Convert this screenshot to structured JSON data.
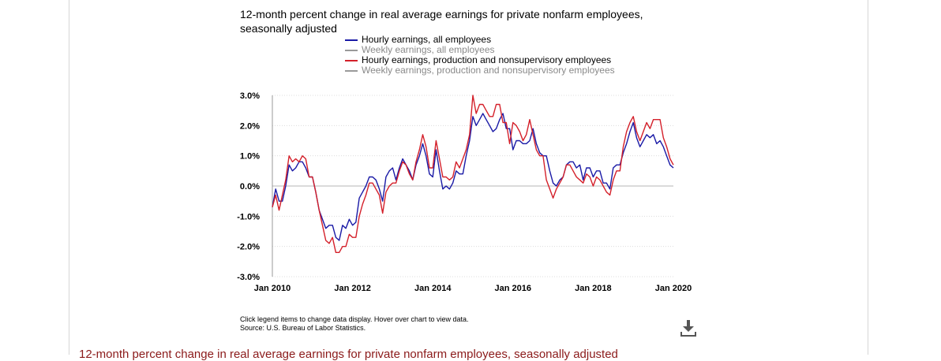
{
  "colors": {
    "hourly_all": "#1a1aa6",
    "weekly_all": "#9a9a9a",
    "hourly_prod": "#d4202a",
    "weekly_prod": "#9a9a9a",
    "section_heading": "#8b1a1a"
  },
  "icons": {
    "download": "download-icon"
  },
  "footnote": {
    "line1": "Click legend items to change data display. Hover over chart to view data.",
    "line2": "Source: U.S. Bureau of Labor Statistics."
  },
  "section_heading": "12-month percent change in real average earnings for private nonfarm employees, seasonally adjusted",
  "chart_data": {
    "type": "line",
    "title": "12-month percent change in real average earnings for private nonfarm employees, seasonally adjusted",
    "xlabel": "",
    "ylabel": "",
    "ylim": [
      -3.0,
      3.0
    ],
    "yticks": [
      "3.0%",
      "2.0%",
      "1.0%",
      "0.0%",
      "-1.0%",
      "-2.0%",
      "-3.0%"
    ],
    "xticks": [
      "Jan 2010",
      "Jan 2012",
      "Jan 2014",
      "Jan 2016",
      "Jan 2018",
      "Jan 2020"
    ],
    "x_start": "2010-01",
    "x_end": "2020-01",
    "grid": true,
    "legend_position": "top",
    "series": [
      {
        "name": "Hourly earnings, all employees",
        "color": "#1a1aa6",
        "active": true,
        "points": [
          [
            "2010-01",
            -0.7
          ],
          [
            "2010-02",
            -0.1
          ],
          [
            "2010-03",
            -0.5
          ],
          [
            "2010-04",
            -0.5
          ],
          [
            "2010-05",
            0.0
          ],
          [
            "2010-06",
            0.7
          ],
          [
            "2010-07",
            0.5
          ],
          [
            "2010-08",
            0.6
          ],
          [
            "2010-09",
            0.8
          ],
          [
            "2010-10",
            0.8
          ],
          [
            "2010-11",
            0.6
          ],
          [
            "2010-12",
            0.3
          ],
          [
            "2011-01",
            0.3
          ],
          [
            "2011-02",
            -0.2
          ],
          [
            "2011-03",
            -0.8
          ],
          [
            "2011-04",
            -1.1
          ],
          [
            "2011-05",
            -1.4
          ],
          [
            "2011-06",
            -1.3
          ],
          [
            "2011-07",
            -1.3
          ],
          [
            "2011-08",
            -1.7
          ],
          [
            "2011-09",
            -1.8
          ],
          [
            "2011-10",
            -1.3
          ],
          [
            "2011-11",
            -1.4
          ],
          [
            "2011-12",
            -1.1
          ],
          [
            "2012-01",
            -1.3
          ],
          [
            "2012-02",
            -1.2
          ],
          [
            "2012-03",
            -0.4
          ],
          [
            "2012-04",
            -0.2
          ],
          [
            "2012-05",
            0.0
          ],
          [
            "2012-06",
            0.3
          ],
          [
            "2012-07",
            0.3
          ],
          [
            "2012-08",
            0.2
          ],
          [
            "2012-09",
            -0.1
          ],
          [
            "2012-10",
            -0.5
          ],
          [
            "2012-11",
            0.3
          ],
          [
            "2012-12",
            0.5
          ],
          [
            "2013-01",
            0.6
          ],
          [
            "2013-02",
            0.2
          ],
          [
            "2013-03",
            0.6
          ],
          [
            "2013-04",
            0.9
          ],
          [
            "2013-05",
            0.7
          ],
          [
            "2013-06",
            0.5
          ],
          [
            "2013-07",
            0.2
          ],
          [
            "2013-08",
            0.7
          ],
          [
            "2013-09",
            1.0
          ],
          [
            "2013-10",
            1.4
          ],
          [
            "2013-11",
            1.0
          ],
          [
            "2013-12",
            0.4
          ],
          [
            "2014-01",
            0.3
          ],
          [
            "2014-02",
            1.2
          ],
          [
            "2014-03",
            0.5
          ],
          [
            "2014-04",
            -0.1
          ],
          [
            "2014-05",
            0.0
          ],
          [
            "2014-06",
            -0.1
          ],
          [
            "2014-07",
            0.1
          ],
          [
            "2014-08",
            0.5
          ],
          [
            "2014-09",
            0.4
          ],
          [
            "2014-10",
            0.4
          ],
          [
            "2014-11",
            1.0
          ],
          [
            "2014-12",
            1.5
          ],
          [
            "2015-01",
            2.3
          ],
          [
            "2015-02",
            2.0
          ],
          [
            "2015-03",
            2.2
          ],
          [
            "2015-04",
            2.4
          ],
          [
            "2015-05",
            2.2
          ],
          [
            "2015-06",
            2.0
          ],
          [
            "2015-07",
            1.8
          ],
          [
            "2015-08",
            1.9
          ],
          [
            "2015-09",
            2.2
          ],
          [
            "2015-10",
            2.4
          ],
          [
            "2015-11",
            1.9
          ],
          [
            "2015-12",
            1.9
          ],
          [
            "2016-01",
            1.2
          ],
          [
            "2016-02",
            1.5
          ],
          [
            "2016-03",
            1.5
          ],
          [
            "2016-04",
            1.4
          ],
          [
            "2016-05",
            1.4
          ],
          [
            "2016-06",
            1.5
          ],
          [
            "2016-07",
            1.9
          ],
          [
            "2016-08",
            1.4
          ],
          [
            "2016-09",
            1.1
          ],
          [
            "2016-10",
            1.0
          ],
          [
            "2016-11",
            1.0
          ],
          [
            "2016-12",
            0.5
          ],
          [
            "2017-01",
            0.1
          ],
          [
            "2017-02",
            0.0
          ],
          [
            "2017-03",
            0.2
          ],
          [
            "2017-04",
            0.3
          ],
          [
            "2017-05",
            0.7
          ],
          [
            "2017-06",
            0.8
          ],
          [
            "2017-07",
            0.8
          ],
          [
            "2017-08",
            0.6
          ],
          [
            "2017-09",
            0.7
          ],
          [
            "2017-10",
            0.2
          ],
          [
            "2017-11",
            0.6
          ],
          [
            "2017-12",
            0.6
          ],
          [
            "2018-01",
            0.3
          ],
          [
            "2018-02",
            0.5
          ],
          [
            "2018-03",
            0.5
          ],
          [
            "2018-04",
            0.1
          ],
          [
            "2018-05",
            0.1
          ],
          [
            "2018-06",
            -0.1
          ],
          [
            "2018-07",
            0.6
          ],
          [
            "2018-08",
            0.7
          ],
          [
            "2018-09",
            0.7
          ],
          [
            "2018-10",
            1.1
          ],
          [
            "2018-11",
            1.4
          ],
          [
            "2018-12",
            1.8
          ],
          [
            "2019-01",
            2.1
          ],
          [
            "2019-02",
            1.6
          ],
          [
            "2019-03",
            1.3
          ],
          [
            "2019-04",
            1.5
          ],
          [
            "2019-05",
            1.7
          ],
          [
            "2019-06",
            1.6
          ],
          [
            "2019-07",
            1.7
          ],
          [
            "2019-08",
            1.4
          ],
          [
            "2019-09",
            1.5
          ],
          [
            "2019-10",
            1.3
          ],
          [
            "2019-11",
            1.0
          ],
          [
            "2019-12",
            0.7
          ],
          [
            "2020-01",
            0.6
          ]
        ]
      },
      {
        "name": "Weekly earnings, all employees",
        "color": "#9a9a9a",
        "active": false,
        "points": []
      },
      {
        "name": "Hourly earnings, production and nonsupervisory employees",
        "color": "#d4202a",
        "active": true,
        "points": [
          [
            "2010-01",
            -0.7
          ],
          [
            "2010-02",
            -0.3
          ],
          [
            "2010-03",
            -0.8
          ],
          [
            "2010-04",
            -0.3
          ],
          [
            "2010-05",
            0.2
          ],
          [
            "2010-06",
            1.0
          ],
          [
            "2010-07",
            0.8
          ],
          [
            "2010-08",
            0.9
          ],
          [
            "2010-09",
            0.8
          ],
          [
            "2010-10",
            1.0
          ],
          [
            "2010-11",
            0.9
          ],
          [
            "2010-12",
            0.3
          ],
          [
            "2011-01",
            0.3
          ],
          [
            "2011-02",
            -0.2
          ],
          [
            "2011-03",
            -0.8
          ],
          [
            "2011-04",
            -1.3
          ],
          [
            "2011-05",
            -1.8
          ],
          [
            "2011-06",
            -1.9
          ],
          [
            "2011-07",
            -1.7
          ],
          [
            "2011-08",
            -2.2
          ],
          [
            "2011-09",
            -2.2
          ],
          [
            "2011-10",
            -2.0
          ],
          [
            "2011-11",
            -2.0
          ],
          [
            "2011-12",
            -1.6
          ],
          [
            "2012-01",
            -1.7
          ],
          [
            "2012-02",
            -1.7
          ],
          [
            "2012-03",
            -1.0
          ],
          [
            "2012-04",
            -0.6
          ],
          [
            "2012-05",
            -0.3
          ],
          [
            "2012-06",
            0.1
          ],
          [
            "2012-07",
            0.1
          ],
          [
            "2012-08",
            -0.1
          ],
          [
            "2012-09",
            -0.3
          ],
          [
            "2012-10",
            -0.9
          ],
          [
            "2012-11",
            -0.2
          ],
          [
            "2012-12",
            0.0
          ],
          [
            "2013-01",
            0.1
          ],
          [
            "2013-02",
            0.1
          ],
          [
            "2013-03",
            0.5
          ],
          [
            "2013-04",
            0.8
          ],
          [
            "2013-05",
            0.7
          ],
          [
            "2013-06",
            0.4
          ],
          [
            "2013-07",
            0.2
          ],
          [
            "2013-08",
            0.8
          ],
          [
            "2013-09",
            1.2
          ],
          [
            "2013-10",
            1.7
          ],
          [
            "2013-11",
            1.3
          ],
          [
            "2013-12",
            0.6
          ],
          [
            "2014-01",
            0.6
          ],
          [
            "2014-02",
            1.5
          ],
          [
            "2014-03",
            0.9
          ],
          [
            "2014-04",
            0.3
          ],
          [
            "2014-05",
            0.3
          ],
          [
            "2014-06",
            0.2
          ],
          [
            "2014-07",
            0.3
          ],
          [
            "2014-08",
            0.8
          ],
          [
            "2014-09",
            0.6
          ],
          [
            "2014-10",
            0.9
          ],
          [
            "2014-11",
            1.2
          ],
          [
            "2014-12",
            1.7
          ],
          [
            "2015-01",
            3.0
          ],
          [
            "2015-02",
            2.4
          ],
          [
            "2015-03",
            2.7
          ],
          [
            "2015-04",
            2.7
          ],
          [
            "2015-05",
            2.5
          ],
          [
            "2015-06",
            2.3
          ],
          [
            "2015-07",
            2.3
          ],
          [
            "2015-08",
            2.7
          ],
          [
            "2015-09",
            2.7
          ],
          [
            "2015-10",
            2.1
          ],
          [
            "2015-11",
            2.1
          ],
          [
            "2015-12",
            1.4
          ],
          [
            "2016-01",
            2.1
          ],
          [
            "2016-02",
            2.0
          ],
          [
            "2016-03",
            1.8
          ],
          [
            "2016-04",
            1.5
          ],
          [
            "2016-05",
            1.7
          ],
          [
            "2016-06",
            2.2
          ],
          [
            "2016-07",
            1.7
          ],
          [
            "2016-08",
            1.2
          ],
          [
            "2016-09",
            1.0
          ],
          [
            "2016-10",
            1.0
          ],
          [
            "2016-11",
            0.2
          ],
          [
            "2016-12",
            -0.1
          ],
          [
            "2017-01",
            -0.4
          ],
          [
            "2017-02",
            -0.1
          ],
          [
            "2017-03",
            0.1
          ],
          [
            "2017-04",
            0.3
          ],
          [
            "2017-05",
            0.7
          ],
          [
            "2017-06",
            0.7
          ],
          [
            "2017-07",
            0.5
          ],
          [
            "2017-08",
            0.3
          ],
          [
            "2017-09",
            0.2
          ],
          [
            "2017-10",
            0.1
          ],
          [
            "2017-11",
            0.4
          ],
          [
            "2017-12",
            0.3
          ],
          [
            "2018-01",
            0.0
          ],
          [
            "2018-02",
            0.3
          ],
          [
            "2018-03",
            0.2
          ],
          [
            "2018-04",
            0.0
          ],
          [
            "2018-05",
            -0.2
          ],
          [
            "2018-06",
            -0.3
          ],
          [
            "2018-07",
            0.2
          ],
          [
            "2018-08",
            0.5
          ],
          [
            "2018-09",
            0.5
          ],
          [
            "2018-10",
            1.3
          ],
          [
            "2018-11",
            1.8
          ],
          [
            "2018-12",
            2.1
          ],
          [
            "2019-01",
            2.3
          ],
          [
            "2019-02",
            1.8
          ],
          [
            "2019-03",
            1.5
          ],
          [
            "2019-04",
            1.8
          ],
          [
            "2019-05",
            2.1
          ],
          [
            "2019-06",
            1.9
          ],
          [
            "2019-07",
            2.2
          ],
          [
            "2019-08",
            2.2
          ],
          [
            "2019-09",
            2.2
          ],
          [
            "2019-10",
            1.6
          ],
          [
            "2019-11",
            1.3
          ],
          [
            "2019-12",
            0.9
          ],
          [
            "2020-01",
            0.7
          ]
        ]
      },
      {
        "name": "Weekly earnings, production and nonsupervisory employees",
        "color": "#9a9a9a",
        "active": false,
        "points": []
      }
    ]
  }
}
